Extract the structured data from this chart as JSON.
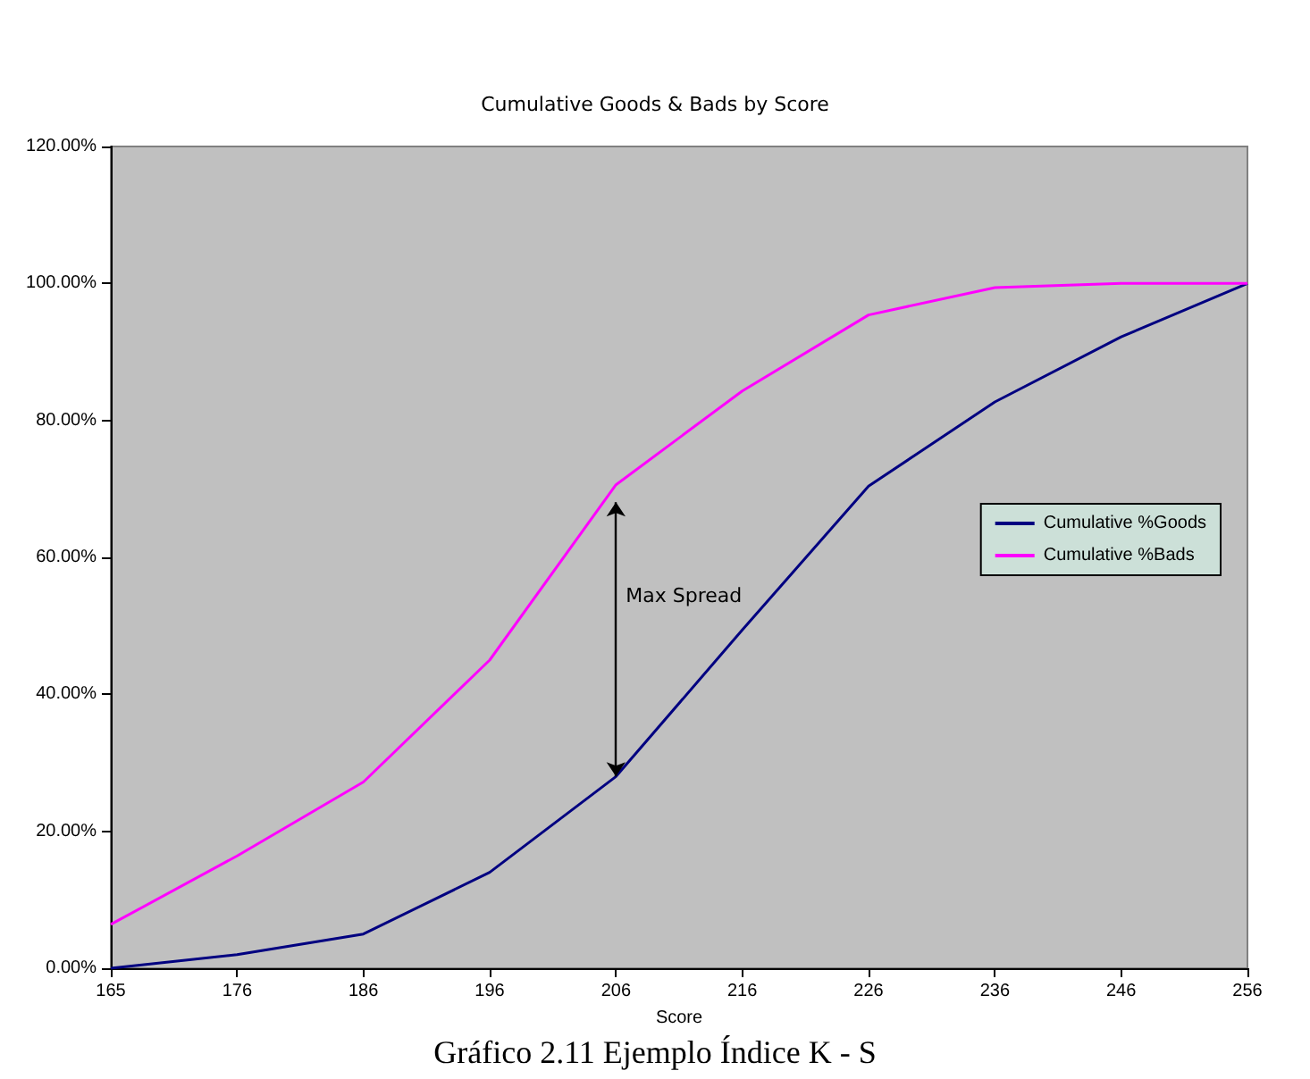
{
  "chart_data": {
    "type": "line",
    "title": "Cumulative Goods & Bads by Score",
    "xlabel": "Score",
    "categories": [
      "165",
      "176",
      "186",
      "196",
      "206",
      "216",
      "226",
      "236",
      "246",
      "256"
    ],
    "series": [
      {
        "name": "Cumulative %Goods",
        "color": "#000080",
        "values": [
          0,
          2,
          5,
          14,
          28,
          49.4,
          70.4,
          82.7,
          92.2,
          100
        ]
      },
      {
        "name": "Cumulative %Bads",
        "color": "#ff00ff",
        "values": [
          6.4,
          16.4,
          27.2,
          45,
          70.6,
          84.3,
          95.4,
          99.4,
          100,
          100
        ]
      }
    ],
    "ylim": [
      0,
      120
    ],
    "yticks": [
      {
        "value": 0,
        "label": "0.00%"
      },
      {
        "value": 20,
        "label": "20.00%"
      },
      {
        "value": 40,
        "label": "40.00%"
      },
      {
        "value": 60,
        "label": "60.00%"
      },
      {
        "value": 80,
        "label": "80.00%"
      },
      {
        "value": 100,
        "label": "100.00%"
      },
      {
        "value": 120,
        "label": "120.00%"
      }
    ],
    "annotations": [
      "Max Spread",
      "Gráfico 2.11 Ejemplo Índice K - S"
    ],
    "grid": false,
    "legend": "right",
    "marker": "none",
    "line_style": "solid"
  }
}
